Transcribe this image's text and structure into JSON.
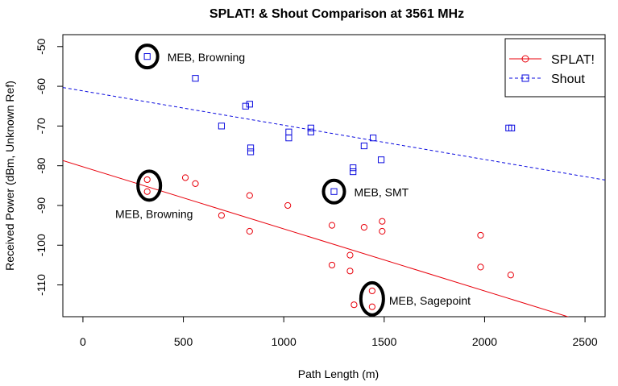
{
  "chart_data": {
    "type": "scatter",
    "title": "SPLAT! & Shout Comparison at 3561 MHz",
    "xlabel": "Path Length (m)",
    "ylabel": "Received Power (dBm, Unknown Ref)",
    "xlim": [
      -100,
      2600
    ],
    "ylim": [
      -118,
      -47
    ],
    "x_ticks": [
      0,
      500,
      1000,
      1500,
      2000,
      2500
    ],
    "y_ticks": [
      -50,
      -60,
      -70,
      -80,
      -90,
      -100,
      -110
    ],
    "legend_position": "top-right",
    "series": [
      {
        "name": "SPLAT!",
        "color": "#e8000b",
        "marker": "circle",
        "line_style": "solid",
        "fit_line": {
          "x": [
            -100,
            2600
          ],
          "y": [
            -78.7,
            -120.9
          ]
        },
        "points": [
          {
            "x": 320,
            "y": -83.5
          },
          {
            "x": 320,
            "y": -86.5
          },
          {
            "x": 510,
            "y": -83
          },
          {
            "x": 560,
            "y": -84.5
          },
          {
            "x": 690,
            "y": -92.5
          },
          {
            "x": 830,
            "y": -87.5
          },
          {
            "x": 830,
            "y": -96.5
          },
          {
            "x": 1020,
            "y": -90
          },
          {
            "x": 1240,
            "y": -95
          },
          {
            "x": 1240,
            "y": -105
          },
          {
            "x": 1330,
            "y": -102.5
          },
          {
            "x": 1330,
            "y": -106.5
          },
          {
            "x": 1350,
            "y": -115
          },
          {
            "x": 1400,
            "y": -95.5
          },
          {
            "x": 1440,
            "y": -111.5
          },
          {
            "x": 1440,
            "y": -115.5
          },
          {
            "x": 1490,
            "y": -94
          },
          {
            "x": 1490,
            "y": -96.5
          },
          {
            "x": 1980,
            "y": -97.5
          },
          {
            "x": 1980,
            "y": -105.5
          },
          {
            "x": 2130,
            "y": -107.5
          }
        ]
      },
      {
        "name": "Shout",
        "color": "#0a0adf",
        "marker": "square",
        "line_style": "dashed",
        "fit_line": {
          "x": [
            -100,
            2600
          ],
          "y": [
            -60.3,
            -83.6
          ]
        },
        "points": [
          {
            "x": 320,
            "y": -52.5
          },
          {
            "x": 560,
            "y": -58
          },
          {
            "x": 690,
            "y": -70
          },
          {
            "x": 810,
            "y": -65
          },
          {
            "x": 830,
            "y": -64.5
          },
          {
            "x": 835,
            "y": -75.5
          },
          {
            "x": 835,
            "y": -76.5
          },
          {
            "x": 1025,
            "y": -71.5
          },
          {
            "x": 1025,
            "y": -73
          },
          {
            "x": 1135,
            "y": -70.5
          },
          {
            "x": 1135,
            "y": -71.5
          },
          {
            "x": 1250,
            "y": -86.5
          },
          {
            "x": 1345,
            "y": -80.5
          },
          {
            "x": 1345,
            "y": -81.5
          },
          {
            "x": 1400,
            "y": -75
          },
          {
            "x": 1445,
            "y": -73
          },
          {
            "x": 1485,
            "y": -78.5
          },
          {
            "x": 2120,
            "y": -70.5
          },
          {
            "x": 2135,
            "y": -70.5
          }
        ]
      }
    ],
    "annotations": [
      {
        "text": "MEB, Browning",
        "target": {
          "x": 320,
          "y": -52.5
        },
        "text_side": "right"
      },
      {
        "text": "MEB, Browning",
        "target": {
          "x": 330,
          "y": -85
        },
        "text_side": "below-left"
      },
      {
        "text": "MEB, SMT",
        "target": {
          "x": 1250,
          "y": -86.5
        },
        "text_side": "right"
      },
      {
        "text": "MEB, Sagepoint",
        "target": {
          "x": 1440,
          "y": -113.5
        },
        "text_side": "right"
      }
    ]
  }
}
